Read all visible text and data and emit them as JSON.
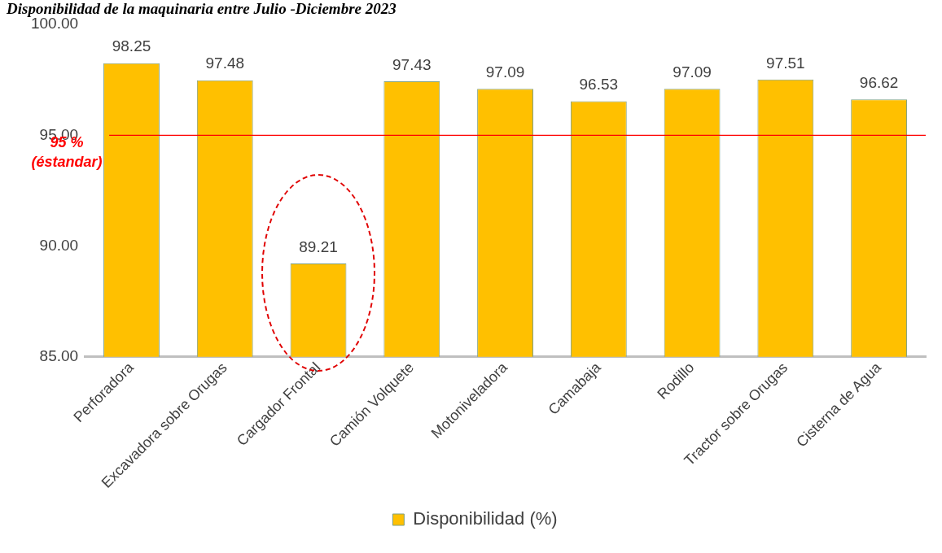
{
  "chart_data": {
    "type": "bar",
    "title": "Disponibilidad de la maquinaria entre Julio -Diciembre 2023",
    "categories": [
      "Perforadora",
      "Excavadora sobre Orugas",
      "Cargador Frontal",
      "Camión Volquete",
      "Motoniveladora",
      "Camabaja",
      "Rodillo",
      "Tractor sobre Orugas",
      "Cisterna de Agua"
    ],
    "series": [
      {
        "name": "Disponibilidad (%)",
        "color": "#ffc000",
        "values": [
          98.25,
          97.48,
          89.21,
          97.43,
          97.09,
          96.53,
          97.09,
          97.51,
          96.62
        ]
      }
    ],
    "ylim": [
      85,
      100
    ],
    "yticks": [
      {
        "value": 85,
        "label": "85.00"
      },
      {
        "value": 90,
        "label": "90.00"
      },
      {
        "value": 95,
        "label": "95.00"
      },
      {
        "value": 100,
        "label": "100.00"
      }
    ],
    "ref_lines": [
      {
        "axis": "y",
        "value": 95,
        "label": "95 % (éstandar)",
        "color": "#ff0000"
      }
    ],
    "data_labels": true,
    "grid": false,
    "legend": "bottom"
  }
}
